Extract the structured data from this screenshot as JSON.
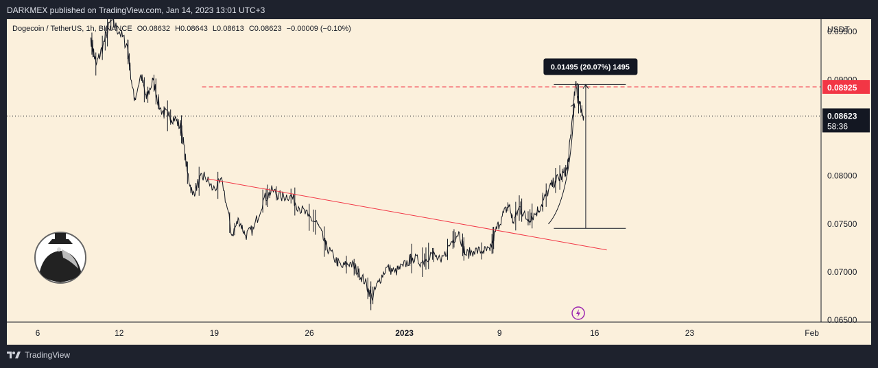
{
  "header": {
    "published": "DARKMEX published on TradingView.com, Jan 14, 2023 13:01 UTC+3"
  },
  "legend": {
    "symbol": "Dogecoin / TetherUS, 1h, BINANCE",
    "open": "O0.08632",
    "high": "H0.08643",
    "low": "L0.08613",
    "close": "C0.08623",
    "change": "−0.00009 (−0.10%)"
  },
  "footer": {
    "brand": "TradingView"
  },
  "colors": {
    "background": "#fbf0dc",
    "candles": "#131722",
    "trendline": "#f23645",
    "price_tag": "#131722",
    "alert_tag": "#f23645",
    "event_icon": "#9c27b0"
  },
  "chart_data": {
    "type": "line",
    "currency": "USDT",
    "x_ticks": [
      {
        "label": "6",
        "day": 6
      },
      {
        "label": "12",
        "day": 12
      },
      {
        "label": "19",
        "day": 19
      },
      {
        "label": "26",
        "day": 26
      },
      {
        "label": "2023",
        "day": 33
      },
      {
        "label": "9",
        "day": 40
      },
      {
        "label": "16",
        "day": 47
      },
      {
        "label": "23",
        "day": 54
      },
      {
        "label": "Feb",
        "day": 63
      }
    ],
    "y_ticks": [
      "0.06500",
      "0.07000",
      "0.07500",
      "0.08000",
      "0.09000",
      "0.09500"
    ],
    "ylim": [
      0.0648,
      0.0963
    ],
    "price_series": [
      [
        9.9,
        0.0944
      ],
      [
        10.3,
        0.0915
      ],
      [
        10.8,
        0.0935
      ],
      [
        11.4,
        0.0962
      ],
      [
        12.0,
        0.095
      ],
      [
        12.6,
        0.0935
      ],
      [
        13.1,
        0.0878
      ],
      [
        13.6,
        0.0905
      ],
      [
        14.0,
        0.088
      ],
      [
        14.5,
        0.09
      ],
      [
        15.0,
        0.087
      ],
      [
        15.6,
        0.0862
      ],
      [
        16.1,
        0.086
      ],
      [
        16.6,
        0.0848
      ],
      [
        17.0,
        0.0805
      ],
      [
        17.4,
        0.078
      ],
      [
        17.9,
        0.0795
      ],
      [
        18.3,
        0.08
      ],
      [
        18.9,
        0.0786
      ],
      [
        19.6,
        0.0794
      ],
      [
        20.3,
        0.0738
      ],
      [
        20.8,
        0.0755
      ],
      [
        21.3,
        0.0738
      ],
      [
        21.9,
        0.0745
      ],
      [
        22.6,
        0.0775
      ],
      [
        23.3,
        0.0785
      ],
      [
        23.9,
        0.0778
      ],
      [
        24.6,
        0.078
      ],
      [
        25.2,
        0.0768
      ],
      [
        25.9,
        0.0758
      ],
      [
        26.6,
        0.075
      ],
      [
        27.2,
        0.0728
      ],
      [
        27.8,
        0.0715
      ],
      [
        28.4,
        0.0705
      ],
      [
        29.0,
        0.071
      ],
      [
        29.6,
        0.07
      ],
      [
        30.1,
        0.069
      ],
      [
        30.6,
        0.0673
      ],
      [
        31.1,
        0.069
      ],
      [
        31.7,
        0.0705
      ],
      [
        32.3,
        0.07
      ],
      [
        32.9,
        0.0706
      ],
      [
        33.6,
        0.0715
      ],
      [
        34.3,
        0.071
      ],
      [
        35.0,
        0.072
      ],
      [
        35.7,
        0.071
      ],
      [
        36.4,
        0.073
      ],
      [
        37.0,
        0.0742
      ],
      [
        37.5,
        0.0718
      ],
      [
        38.1,
        0.0722
      ],
      [
        38.8,
        0.0722
      ],
      [
        39.3,
        0.0722
      ],
      [
        39.7,
        0.0742
      ],
      [
        40.2,
        0.0758
      ],
      [
        40.7,
        0.077
      ],
      [
        41.0,
        0.0752
      ],
      [
        41.5,
        0.0768
      ],
      [
        42.0,
        0.0755
      ],
      [
        42.6,
        0.076
      ],
      [
        43.1,
        0.077
      ],
      [
        43.6,
        0.0785
      ],
      [
        44.1,
        0.0795
      ],
      [
        44.6,
        0.08
      ],
      [
        45.0,
        0.0808
      ],
      [
        45.3,
        0.085
      ],
      [
        45.6,
        0.0895
      ],
      [
        45.9,
        0.0875
      ],
      [
        46.2,
        0.0862
      ]
    ],
    "trendline": {
      "from": [
        18.5,
        0.0797
      ],
      "to": [
        47.9,
        0.0723
      ],
      "color": "#f23645"
    },
    "horizontal_levels": [
      {
        "value": 0.08925,
        "label": "0.08925",
        "style": "dashed",
        "color": "#f23645"
      },
      {
        "value": 0.08623,
        "label": "0.08623",
        "countdown": "58:36",
        "style": "dotted",
        "color": "#131722"
      }
    ],
    "measure": {
      "label": "0.01495 (20.07%) 1495",
      "from_day": 44.0,
      "to_day": 46.3,
      "low": 0.07455,
      "high": 0.0895
    },
    "arrow_path": [
      [
        43.6,
        0.075
      ],
      [
        44.6,
        0.0775
      ],
      [
        45.2,
        0.082
      ],
      [
        45.5,
        0.0875
      ]
    ]
  }
}
